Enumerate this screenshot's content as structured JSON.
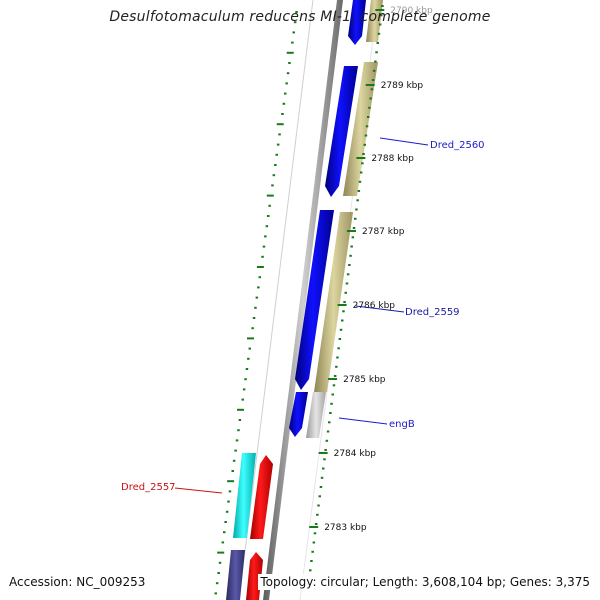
{
  "title": "Desulfotomaculum reducens MI-1, complete genome",
  "ruler": {
    "ticks": [
      "2790 kbp",
      "2789 kbp",
      "2788 kbp",
      "2787 kbp",
      "2786 kbp",
      "2785 kbp",
      "2784 kbp",
      "2783 kbp"
    ]
  },
  "genes": [
    {
      "label": "Dred_2560",
      "color": "#1a1acc"
    },
    {
      "label": "Dred_2559",
      "color": "#1a1aa0"
    },
    {
      "label": "engB",
      "color": "#1a1acc"
    },
    {
      "label": "Dred_2557",
      "color": "#cc1111"
    }
  ],
  "footer": {
    "accession": "Accession: NC_009253",
    "topology": "Topology: circular; Length: 3,608,104 bp; Genes: 3,375"
  },
  "colors": {
    "forward_cds": "#0a0aee",
    "reverse_cds": "#ee0a0a",
    "gc_track": "#b0a66e",
    "gray_track": "#bdbdbd",
    "cyan_feature": "#18e8e8",
    "navy_feature": "#3b3a7e",
    "tick_green": "#1a7a1a",
    "backbone": "#8a8a8a"
  }
}
